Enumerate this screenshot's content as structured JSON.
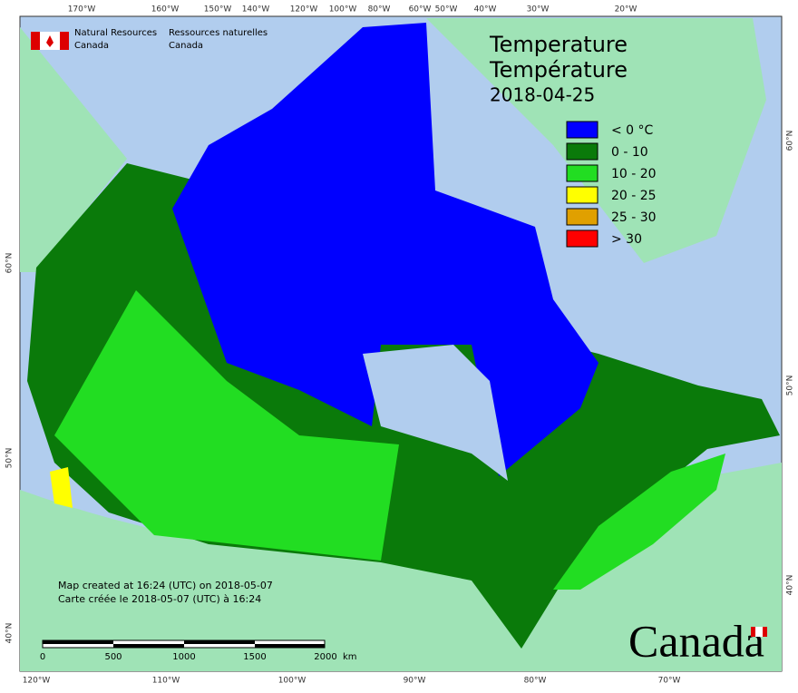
{
  "header": {
    "org_en": "Natural Resources",
    "org_en_2": "Canada",
    "org_fr": "Ressources naturelles",
    "org_fr_2": "Canada"
  },
  "title": {
    "line_1": "Temperature",
    "line_2": "Température",
    "date": "2018-04-25"
  },
  "legend": [
    {
      "label": "< 0 °C",
      "color": "#0000ff"
    },
    {
      "label": "0 - 10",
      "color": "#0a7a0a"
    },
    {
      "label": "10 - 20",
      "color": "#22dd22"
    },
    {
      "label": "20 - 25",
      "color": "#ffff00"
    },
    {
      "label": "25 - 30",
      "color": "#e0a000"
    },
    {
      "label": "> 30",
      "color": "#ff0000"
    }
  ],
  "graticule": {
    "top": [
      "170°W",
      "160°W",
      "150°W",
      "140°W",
      "120°W",
      "100°W",
      "80°W",
      "60°W",
      "50°W",
      "40°W",
      "30°W",
      "20°W"
    ],
    "bottom": [
      "120°W",
      "110°W",
      "100°W",
      "90°W",
      "80°W",
      "70°W"
    ],
    "left": [
      "60°N",
      "50°N",
      "40°N"
    ],
    "right": [
      "60°N",
      "50°N",
      "40°N"
    ]
  },
  "credits": [
    "Map created at 16:24 (UTC) on 2018-05-07",
    "Carte créée le 2018-05-07 (UTC) à 16:24"
  ],
  "scale_bar": {
    "ticks": [
      "0",
      "500",
      "1000",
      "1500",
      "2000"
    ],
    "unit": "km"
  },
  "wordmark": "Canada"
}
